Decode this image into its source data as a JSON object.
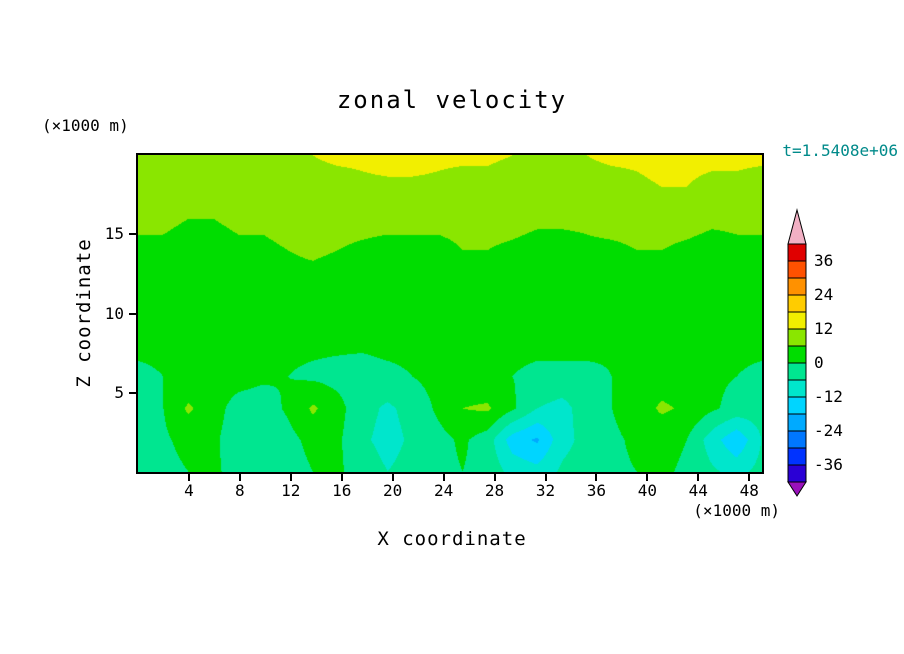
{
  "colors": {
    "background": "#ffffff",
    "frame": "#000000",
    "time_label": "#008a8a",
    "tick": "#000000"
  },
  "chart_data": {
    "type": "heatmap",
    "title": "zonal velocity",
    "xlabel": "X coordinate",
    "ylabel": "Z coordinate",
    "x_unit": "(×1000 m)",
    "z_unit": "(×1000 m)",
    "time_annotation": "t=1.5408e+06",
    "xlim": [
      0,
      49
    ],
    "ylim": [
      0,
      20
    ],
    "x_ticks": [
      "4",
      "8",
      "12",
      "16",
      "20",
      "24",
      "28",
      "32",
      "36",
      "40",
      "44",
      "48"
    ],
    "x_tick_values": [
      4,
      8,
      12,
      16,
      20,
      24,
      28,
      32,
      36,
      40,
      44,
      48
    ],
    "y_ticks": [
      "5",
      "10",
      "15"
    ],
    "y_tick_values": [
      5,
      10,
      15
    ],
    "grid_lines": "off",
    "legend_position": "right-colorbar",
    "contour_levels": {
      "min": -42,
      "max": 42,
      "step": 6
    },
    "colorbar": {
      "labels": [
        "36",
        "24",
        "12",
        "0",
        "-12",
        "-24",
        "-36"
      ],
      "label_values": [
        36,
        24,
        12,
        0,
        -12,
        -24,
        -36
      ],
      "band_colors_bottom_to_top": [
        "#2a00d5",
        "#0033ff",
        "#0077ff",
        "#00aaff",
        "#00d5ff",
        "#00e6cc",
        "#00e690",
        "#00dd00",
        "#8ae600",
        "#f2ef00",
        "#ffcc00",
        "#ff9100",
        "#ff5100",
        "#e00000"
      ],
      "under_color": "#9911bb",
      "over_color": "#f2b0c4"
    },
    "grid": {
      "x_count": 26,
      "z_count": 11,
      "note": "estimated zonal velocity field on uniform grid over x 0..49 (x1000 m), z 0..20 (x1000 m); rows ordered from z=20 (top) down to z=0 (bottom)",
      "values": [
        [
          10,
          10,
          10,
          10,
          10,
          11,
          11,
          12,
          13,
          13,
          14,
          14,
          13,
          13,
          13,
          12,
          11,
          11,
          12,
          13,
          13,
          14,
          13,
          13,
          13,
          13
        ],
        [
          9,
          9,
          9,
          9,
          9,
          9,
          10,
          10,
          10,
          11,
          11,
          11,
          11,
          10,
          10,
          9,
          9,
          9,
          10,
          10,
          11,
          12,
          12,
          11,
          11,
          10
        ],
        [
          7,
          7,
          6,
          6,
          7,
          7,
          8,
          8,
          8,
          8,
          8,
          8,
          7,
          7,
          8,
          8,
          7,
          7,
          7,
          8,
          8,
          8,
          8,
          7,
          7,
          7
        ],
        [
          5,
          5,
          4,
          4,
          5,
          5,
          6,
          7,
          6,
          5,
          4,
          4,
          5,
          6,
          6,
          5,
          4,
          4,
          5,
          5,
          6,
          6,
          5,
          4,
          5,
          5
        ],
        [
          4,
          3,
          3,
          3,
          3,
          4,
          4,
          4,
          3,
          2,
          2,
          3,
          3,
          3,
          2,
          2,
          3,
          3,
          3,
          4,
          4,
          3,
          3,
          3,
          3,
          4
        ],
        [
          2,
          2,
          3,
          3,
          3,
          2,
          2,
          2,
          2,
          2,
          3,
          3,
          2,
          2,
          2,
          2,
          2,
          2,
          3,
          3,
          2,
          2,
          2,
          2,
          2,
          2
        ],
        [
          1,
          1,
          1,
          2,
          2,
          2,
          1,
          1,
          1,
          1,
          2,
          2,
          1,
          1,
          1,
          1,
          1,
          2,
          2,
          1,
          1,
          1,
          1,
          1,
          1,
          1
        ],
        [
          -1,
          0,
          1,
          2,
          2,
          1,
          0,
          -1,
          -2,
          -3,
          -2,
          0,
          2,
          2,
          1,
          0,
          -1,
          -2,
          -2,
          0,
          2,
          3,
          2,
          1,
          0,
          -1
        ],
        [
          -2,
          0,
          7,
          2,
          -2,
          -3,
          1,
          7,
          2,
          -4,
          -7,
          -4,
          1,
          6,
          7,
          1,
          -6,
          -8,
          -3,
          0,
          3,
          7,
          5,
          1,
          -2,
          -3
        ],
        [
          -3,
          -1,
          2,
          1,
          -3,
          -5,
          -2,
          2,
          1,
          -5,
          -8,
          -5,
          -2,
          1,
          -3,
          -15,
          -19,
          -8,
          -4,
          -1,
          1,
          2,
          0,
          -9,
          -17,
          -6
        ],
        [
          -4,
          -2,
          0,
          1,
          -2,
          -4,
          -3,
          0,
          1,
          -3,
          -6,
          -4,
          -2,
          0,
          -2,
          -8,
          -10,
          -5,
          -3,
          -1,
          0,
          1,
          -1,
          -5,
          -8,
          -4
        ]
      ]
    }
  }
}
